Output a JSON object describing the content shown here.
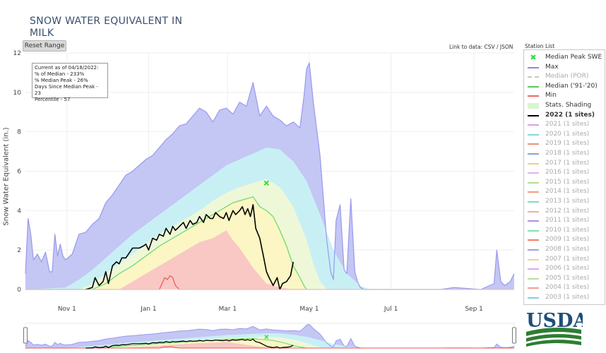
{
  "title_line1": "SNOW WATER EQUIVALENT IN",
  "title_line2": "MILK",
  "reset_label": "Reset Range",
  "link_label": "Link to data: CSV / JSON",
  "station_list_label": "Station List",
  "info": {
    "line1": "Current as of 04/18/2022:",
    "line2": "% of Median - 233%",
    "line3": "% Median Peak - 26%",
    "line4": "Days Since Median Peak - 23",
    "line5": "Percentile - 57"
  },
  "logo_text": "USDA",
  "legend": [
    {
      "label": "Median Peak SWE",
      "color": "#33dd44",
      "marker": true
    },
    {
      "label": "Max",
      "color": "#8a8ae8"
    },
    {
      "label": "Median (POR)",
      "color": "#c8c8c8",
      "dashed": true
    },
    {
      "label": "Median ('91-'20)",
      "color": "#55cc55"
    },
    {
      "label": "Min",
      "color": "#ee6666"
    },
    {
      "label": "Stats. Shading",
      "color": "#d8f5d0"
    },
    {
      "label": "2022 (1 sites)",
      "color": "#000000",
      "bold": true
    },
    {
      "label": "2021 (1 sites)",
      "color": "#e0a0e0"
    },
    {
      "label": "2020 (1 sites)",
      "color": "#80d8e0"
    },
    {
      "label": "2019 (1 sites)",
      "color": "#f09080"
    },
    {
      "label": "2018 (1 sites)",
      "color": "#9a9ae0"
    },
    {
      "label": "2017 (1 sites)",
      "color": "#f0d080"
    },
    {
      "label": "2016 (1 sites)",
      "color": "#e8b0e8"
    },
    {
      "label": "2015 (1 sites)",
      "color": "#b0e090"
    },
    {
      "label": "2014 (1 sites)",
      "color": "#f0a080"
    },
    {
      "label": "2013 (1 sites)",
      "color": "#80d8d0"
    },
    {
      "label": "2012 (1 sites)",
      "color": "#f0b0a0"
    },
    {
      "label": "2011 (1 sites)",
      "color": "#b090e0"
    },
    {
      "label": "2010 (1 sites)",
      "color": "#80e0b0"
    },
    {
      "label": "2009 (1 sites)",
      "color": "#f08060"
    },
    {
      "label": "2008 (1 sites)",
      "color": "#a0a0e8"
    },
    {
      "label": "2007 (1 sites)",
      "color": "#f0d0a0"
    },
    {
      "label": "2006 (1 sites)",
      "color": "#e0a8e8"
    },
    {
      "label": "2005 (1 sites)",
      "color": "#b8e0a0"
    },
    {
      "label": "2004 (1 sites)",
      "color": "#f0a090"
    },
    {
      "label": "2003 (1 sites)",
      "color": "#80d0e0"
    }
  ],
  "chart_data": {
    "type": "area",
    "ylabel": "Snow Water Equivalent (in.)",
    "ylim": [
      0,
      12
    ],
    "y_ticks": [
      "0",
      "2",
      "4",
      "6",
      "8",
      "10",
      "12"
    ],
    "x_ticks": [
      "Nov 1",
      "Jan 1",
      "Mar 1",
      "May 1",
      "Jul 1",
      "Sep 1"
    ],
    "x_tick_days": [
      31,
      92,
      151,
      212,
      273,
      335
    ],
    "xlim_days": [
      0,
      365
    ],
    "grid": true,
    "median_peak": {
      "day": 180,
      "value": 5.4
    },
    "series": [
      {
        "name": "Max",
        "color": "#9999ee",
        "fill": "#c4c6f4",
        "x": [
          0,
          2,
          4,
          6,
          9,
          12,
          15,
          18,
          20,
          22,
          24,
          26,
          28,
          30,
          35,
          40,
          45,
          50,
          55,
          60,
          65,
          70,
          75,
          80,
          85,
          90,
          95,
          100,
          105,
          110,
          115,
          120,
          125,
          130,
          135,
          140,
          145,
          150,
          155,
          160,
          165,
          170,
          175,
          180,
          182,
          185,
          190,
          195,
          200,
          205,
          208,
          210,
          212,
          215,
          220,
          225,
          228,
          230,
          232,
          235,
          238,
          240,
          243,
          246,
          248,
          250,
          253,
          256,
          260,
          270,
          280,
          290,
          300,
          310,
          320,
          330,
          340,
          350,
          352,
          355,
          358,
          362,
          365
        ],
        "y": [
          0.8,
          3.6,
          2.8,
          1.5,
          1.8,
          1.4,
          1.9,
          0.9,
          0.9,
          2.8,
          1.7,
          2.3,
          1.7,
          1.5,
          1.8,
          2.8,
          2.9,
          3.3,
          3.6,
          4.4,
          4.8,
          5.3,
          5.8,
          6.0,
          6.3,
          6.6,
          6.8,
          7.2,
          7.6,
          7.9,
          8.3,
          8.4,
          8.8,
          9.2,
          9.0,
          8.5,
          9.1,
          9.2,
          8.9,
          9.5,
          9.3,
          10.5,
          8.8,
          9.3,
          9.1,
          8.8,
          8.6,
          8.3,
          8.5,
          8.2,
          9.8,
          11.2,
          11.5,
          9.5,
          6.8,
          2.5,
          0.9,
          0.5,
          3.5,
          4.3,
          1.0,
          0.8,
          4.6,
          0.9,
          0.4,
          0.1,
          0.0,
          0.0,
          0.0,
          0.0,
          0.0,
          0.0,
          0.0,
          0.0,
          0.1,
          0.05,
          0.0,
          0.3,
          2.0,
          0.4,
          0.2,
          0.4,
          0.8
        ]
      },
      {
        "name": "90th Percentile",
        "color": "#c8f0f4",
        "fill": "#c8f0f4",
        "x": [
          0,
          30,
          40,
          50,
          60,
          70,
          80,
          90,
          100,
          110,
          120,
          130,
          140,
          150,
          160,
          170,
          180,
          190,
          200,
          210,
          220,
          230,
          240,
          250,
          255,
          260
        ],
        "y": [
          0.0,
          0.1,
          0.5,
          1.0,
          1.6,
          2.2,
          2.8,
          3.3,
          3.8,
          4.3,
          4.8,
          5.3,
          5.8,
          6.3,
          6.6,
          6.9,
          7.2,
          7.1,
          6.5,
          5.5,
          3.8,
          2.0,
          0.8,
          0.2,
          0.05,
          0.0
        ]
      },
      {
        "name": "70th Percentile",
        "color": "#eef8d8",
        "fill": "#eef8d8",
        "x": [
          0,
          40,
          50,
          60,
          70,
          80,
          90,
          100,
          110,
          120,
          130,
          140,
          150,
          160,
          170,
          180,
          190,
          200,
          210,
          215,
          220,
          225
        ],
        "y": [
          0.0,
          0.0,
          0.3,
          0.8,
          1.3,
          1.8,
          2.3,
          2.8,
          3.2,
          3.6,
          4.0,
          4.5,
          4.9,
          5.2,
          5.4,
          5.6,
          5.2,
          4.2,
          2.5,
          1.3,
          0.4,
          0.0
        ]
      },
      {
        "name": "Median ('91-'20)",
        "color": "#6ad66a",
        "fill": "#fcf6c4",
        "x": [
          0,
          50,
          60,
          70,
          80,
          90,
          100,
          110,
          120,
          130,
          140,
          150,
          155,
          160,
          165,
          170,
          175,
          180,
          185,
          190,
          195,
          200,
          205,
          208,
          210
        ],
        "y": [
          0.0,
          0.0,
          0.3,
          0.8,
          1.2,
          1.7,
          2.2,
          2.6,
          3.0,
          3.4,
          3.8,
          4.2,
          4.4,
          4.5,
          4.6,
          4.7,
          4.2,
          4.0,
          3.7,
          3.0,
          2.2,
          1.2,
          0.6,
          0.2,
          0.0
        ]
      },
      {
        "name": "30th Percentile",
        "color": "#f9c8c4",
        "fill": "#f9c8c4",
        "x": [
          0,
          70,
          75,
          80,
          90,
          100,
          110,
          120,
          130,
          140,
          150,
          155,
          160,
          165,
          170,
          175,
          180,
          185,
          190,
          195,
          200
        ],
        "y": [
          0.0,
          0.0,
          0.2,
          0.4,
          0.8,
          1.2,
          1.6,
          2.0,
          2.4,
          2.6,
          3.0,
          2.5,
          2.1,
          1.6,
          1.1,
          0.7,
          0.3,
          0.2,
          0.1,
          0.05,
          0.0
        ]
      },
      {
        "name": "Min",
        "color": "#ee5555",
        "fill": "none",
        "x": [
          0,
          100,
          102,
          104,
          106,
          108,
          110,
          112,
          115,
          365
        ],
        "y": [
          0.0,
          0.0,
          0.3,
          0.6,
          0.5,
          0.7,
          0.6,
          0.2,
          0.0,
          0.0
        ]
      },
      {
        "name": "2022",
        "color": "#000000",
        "fill": "none",
        "x": [
          45,
          50,
          52,
          55,
          58,
          60,
          62,
          65,
          68,
          70,
          72,
          75,
          78,
          80,
          85,
          88,
          90,
          92,
          95,
          98,
          100,
          103,
          105,
          108,
          110,
          112,
          115,
          118,
          120,
          123,
          125,
          128,
          130,
          133,
          135,
          138,
          140,
          142,
          145,
          148,
          150,
          152,
          155,
          157,
          160,
          162,
          164,
          166,
          168,
          170,
          172,
          175,
          178,
          180,
          182,
          185,
          188,
          190,
          192,
          195,
          198,
          200
        ],
        "y": [
          0.0,
          0.1,
          0.6,
          0.2,
          0.4,
          0.9,
          0.3,
          1.2,
          1.4,
          1.3,
          1.6,
          1.6,
          1.9,
          2.1,
          2.1,
          2.2,
          2.3,
          2.0,
          2.6,
          2.5,
          2.8,
          2.7,
          3.1,
          2.8,
          3.2,
          3.0,
          3.2,
          3.4,
          3.1,
          3.5,
          3.3,
          3.4,
          3.7,
          3.4,
          3.8,
          3.6,
          3.6,
          3.9,
          3.7,
          3.6,
          3.9,
          3.5,
          4.0,
          3.8,
          4.0,
          4.2,
          3.8,
          4.1,
          3.7,
          4.3,
          3.1,
          2.6,
          1.6,
          0.9,
          0.6,
          0.2,
          0.6,
          0.0,
          0.3,
          0.4,
          0.7,
          1.4
        ]
      }
    ]
  }
}
